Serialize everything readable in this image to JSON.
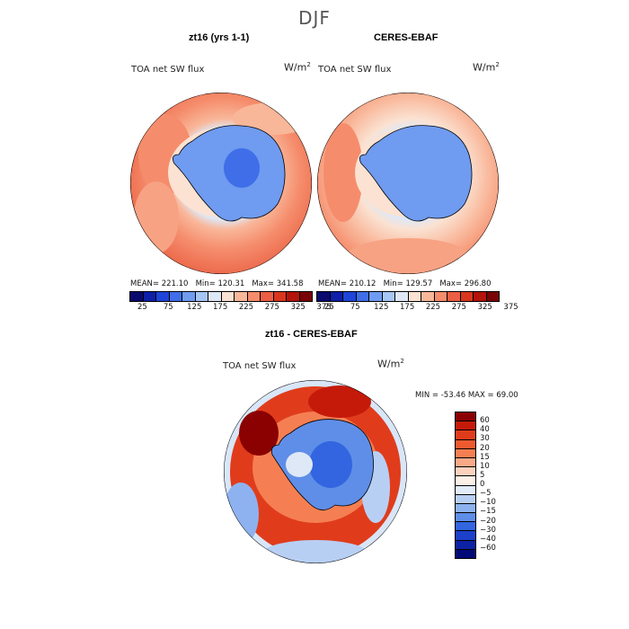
{
  "season": "DJF",
  "panels": [
    {
      "title": "zt16 (yrs 1-1)",
      "variable": "TOA net SW flux",
      "units": "W/m",
      "units_exp": "2",
      "mean_label": "MEAN=",
      "mean": "221.10",
      "min_label": "Min=",
      "min": "120.31",
      "max_label": "Max=",
      "max": "341.58"
    },
    {
      "title": "CERES-EBAF",
      "variable": "TOA net SW flux",
      "units": "W/m",
      "units_exp": "2",
      "mean_label": "MEAN=",
      "mean": "210.12",
      "min_label": "Min=",
      "min": "129.57",
      "max_label": "Max=",
      "max": "296.80"
    }
  ],
  "diff": {
    "title": "zt16 - CERES-EBAF",
    "variable": "TOA net SW flux",
    "units": "W/m",
    "units_exp": "2",
    "minmax": "MIN = -53.46 MAX =  69.00"
  },
  "colorbar_top": {
    "colors": [
      "#0a0a6e",
      "#0f1fa8",
      "#1f45d8",
      "#3f6ee8",
      "#6f9bf0",
      "#a8c6f4",
      "#dfe8f6",
      "#fbe2d2",
      "#f9b79a",
      "#f58d6c",
      "#ec5f44",
      "#d8371e",
      "#b3140b",
      "#7a0405"
    ],
    "ticks": [
      "25",
      "75",
      "125",
      "175",
      "225",
      "275",
      "325",
      "375"
    ]
  },
  "colorbar_diff": {
    "colors": [
      "#8b0000",
      "#c51a0a",
      "#e03c1c",
      "#ee5a30",
      "#f57f52",
      "#f9a987",
      "#fcd2bf",
      "#fdf0e6",
      "#e2ecfb",
      "#b8cff4",
      "#8eb2ef",
      "#5f8ee8",
      "#3265df",
      "#1c40c9",
      "#0b22a4",
      "#020a78"
    ],
    "ticks": [
      "60",
      "40",
      "30",
      "20",
      "15",
      "10",
      "5",
      "0",
      "−5",
      "−10",
      "−15",
      "−20",
      "−30",
      "−40",
      "−60"
    ]
  }
}
